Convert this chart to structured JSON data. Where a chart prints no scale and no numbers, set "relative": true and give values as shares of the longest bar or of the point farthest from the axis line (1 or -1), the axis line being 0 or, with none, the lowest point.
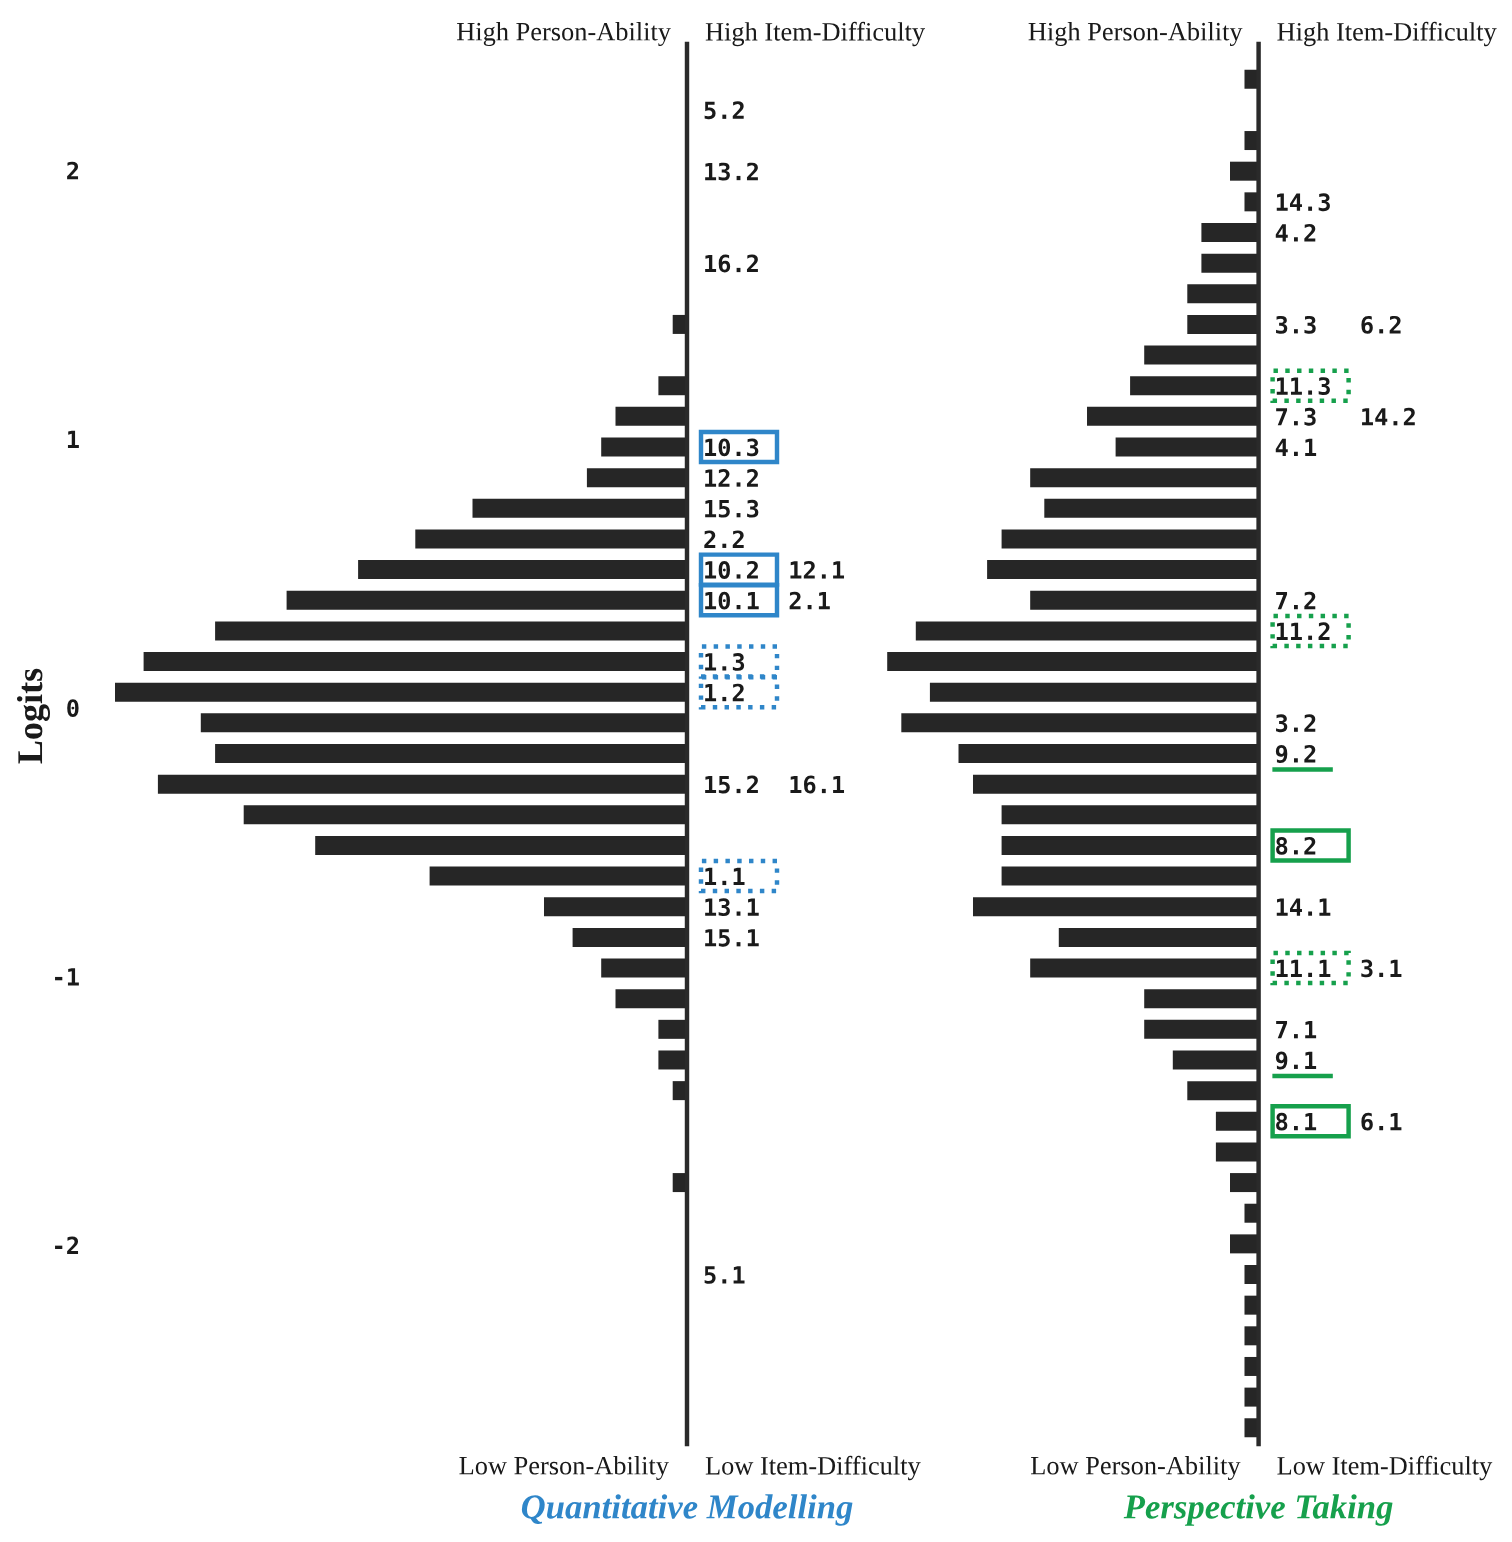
{
  "chart_data": [
    {
      "type": "bar",
      "orientation": "horizontal",
      "relative": true,
      "title": "Quantitative Modelling",
      "y2label": "Logits",
      "color": "#262626",
      "y2lim": [
        -2.74,
        2.47
      ],
      "y2ticks": [
        -2,
        -1,
        0,
        1,
        2
      ],
      "categories": [
        null,
        "5.2",
        null,
        "13.2",
        null,
        null,
        "16.2",
        null,
        null,
        null,
        null,
        null,
        "10.3",
        "12.2",
        "15.3",
        "2.2",
        "10.2  12.1",
        "10.1  2.1",
        null,
        "1.3",
        "1.2",
        null,
        null,
        "15.2  16.1",
        null,
        null,
        "1.1",
        "13.1",
        "15.1",
        null,
        null,
        null,
        null,
        null,
        null,
        null,
        null,
        null,
        null,
        "5.1",
        null,
        null,
        null,
        null,
        null
      ],
      "values": [
        null,
        null,
        null,
        null,
        null,
        null,
        null,
        null,
        0.025,
        null,
        0.05,
        0.125,
        0.15,
        0.175,
        0.375,
        0.475,
        0.575,
        0.7,
        0.825,
        0.95,
        1,
        0.85,
        0.825,
        0.925,
        0.775,
        0.65,
        0.45,
        0.25,
        0.2,
        0.15,
        0.125,
        0.05,
        0.05,
        0.025,
        null,
        null,
        0.025,
        null,
        null,
        null,
        null,
        null,
        null,
        null,
        null
      ],
      "annotations": [
        "High Person-Ability",
        "High Item-Difficulty",
        "Low Person-Ability",
        "Low Item-Difficulty"
      ]
    },
    {
      "type": "bar",
      "orientation": "horizontal",
      "relative": true,
      "title": "Perspective Taking",
      "color": "#262626",
      "tick_labels": "y",
      "y2lim": [
        -2.74,
        2.47
      ],
      "categories": [
        null,
        null,
        null,
        null,
        "14.3",
        "4.2",
        null,
        null,
        "3.3   6.2",
        null,
        "11.3",
        "7.3   14.2",
        "4.1",
        null,
        null,
        null,
        null,
        "7.2",
        "11.2",
        null,
        null,
        "3.2",
        "9.2",
        null,
        null,
        "8.2",
        null,
        "14.1",
        null,
        "11.1  3.1",
        null,
        "7.1",
        "9.1",
        null,
        "8.1   6.1",
        null,
        null,
        null,
        null,
        null,
        null,
        null,
        null,
        null,
        null
      ],
      "values": [
        0.038,
        null,
        0.038,
        0.077,
        0.038,
        0.154,
        0.154,
        0.192,
        0.192,
        0.308,
        0.346,
        0.462,
        0.385,
        0.615,
        0.577,
        0.692,
        0.731,
        0.615,
        0.923,
        1,
        0.885,
        0.962,
        0.808,
        0.769,
        0.692,
        0.692,
        0.692,
        0.769,
        0.538,
        0.615,
        0.308,
        0.308,
        0.231,
        0.192,
        0.115,
        0.115,
        0.077,
        0.038,
        0.077,
        0.038,
        0.038,
        0.038,
        0.038,
        0.038,
        0.038
      ],
      "annotations": [
        "High Person-Ability",
        "High Item-Difficulty",
        "Low Person-Ability",
        "Low Item-Difficulty"
      ]
    }
  ]
}
